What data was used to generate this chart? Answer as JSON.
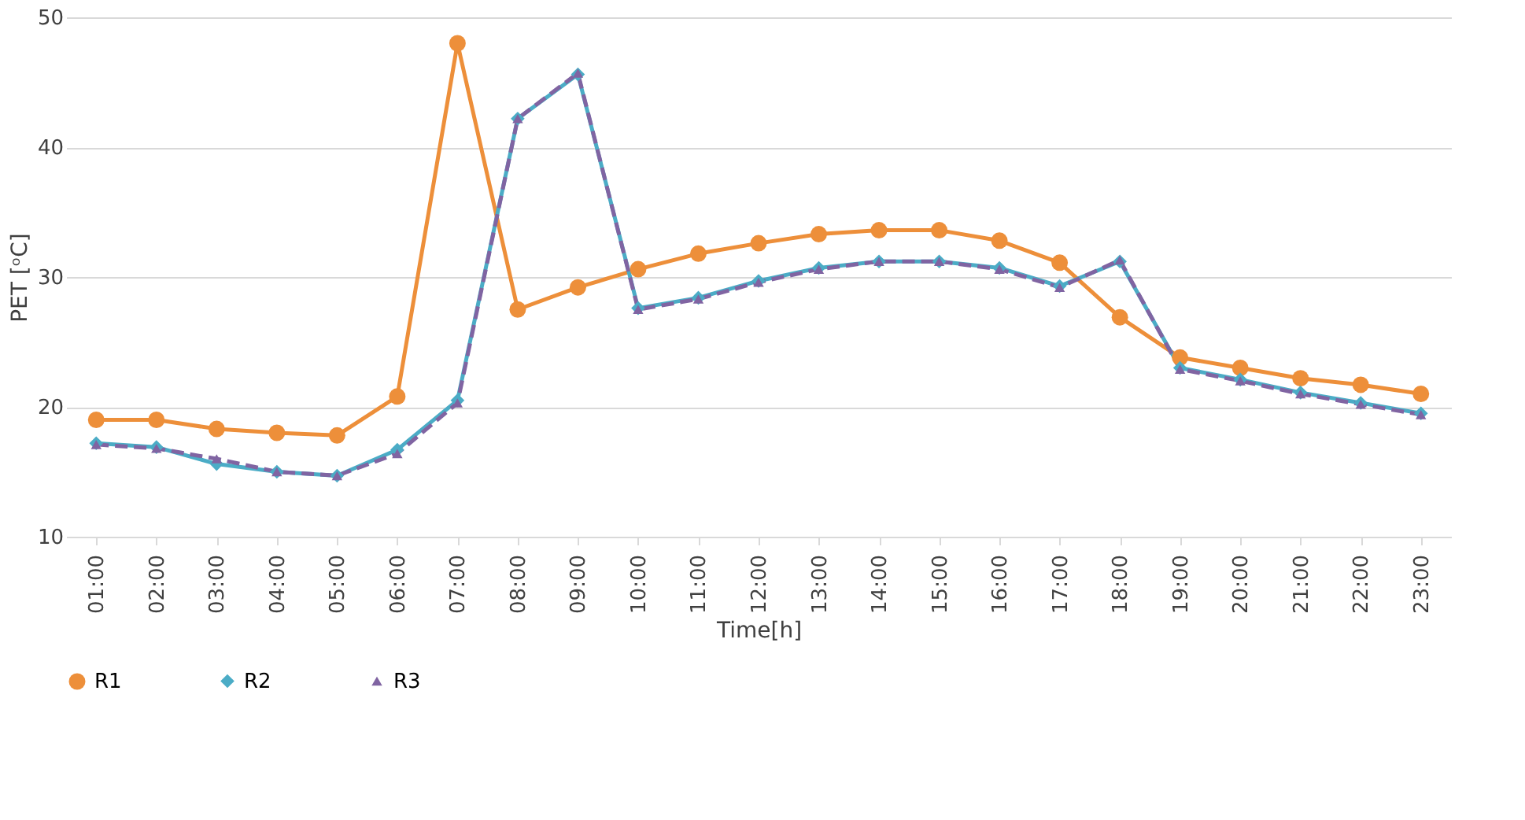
{
  "chart_data": {
    "type": "line",
    "xlabel": "Time[h]",
    "ylabel": "PET [ᵒC]",
    "categories": [
      "01:00",
      "02:00",
      "03:00",
      "04:00",
      "05:00",
      "06:00",
      "07:00",
      "08:00",
      "09:00",
      "10:00",
      "11:00",
      "12:00",
      "13:00",
      "14:00",
      "15:00",
      "16:00",
      "17:00",
      "18:00",
      "19:00",
      "20:00",
      "21:00",
      "22:00",
      "23:00"
    ],
    "series": [
      {
        "name": "R1",
        "color": "#ed8f3a",
        "marker": "circle",
        "line_style": "solid",
        "values": [
          19,
          19,
          18.3,
          18,
          17.8,
          20.8,
          48,
          27.5,
          29.2,
          30.6,
          31.8,
          32.6,
          33.3,
          33.6,
          33.6,
          32.8,
          31.1,
          26.9,
          23.8,
          23,
          22.2,
          21.7,
          21
        ]
      },
      {
        "name": "R2",
        "color": "#4bacc6",
        "marker": "diamond",
        "line_style": "solid",
        "values": [
          17.2,
          16.9,
          15.6,
          15,
          14.7,
          16.7,
          20.5,
          42.2,
          45.6,
          27.6,
          28.4,
          29.7,
          30.7,
          31.2,
          31.2,
          30.7,
          29.3,
          31.2,
          23,
          22.1,
          21.1,
          20.3,
          19.5
        ]
      },
      {
        "name": "R3",
        "color": "#8064a2",
        "marker": "triangle",
        "line_style": "dashed",
        "values": [
          17.1,
          16.8,
          16,
          15,
          14.7,
          16.4,
          20.3,
          42.2,
          45.7,
          27.5,
          28.3,
          29.6,
          30.6,
          31.2,
          31.2,
          30.6,
          29.2,
          31.3,
          22.9,
          22,
          21,
          20.2,
          19.4
        ]
      }
    ],
    "ylim": [
      10,
      50
    ],
    "yticks": [
      10,
      20,
      30,
      40,
      50
    ],
    "grid": "y",
    "legend": "bottom"
  }
}
